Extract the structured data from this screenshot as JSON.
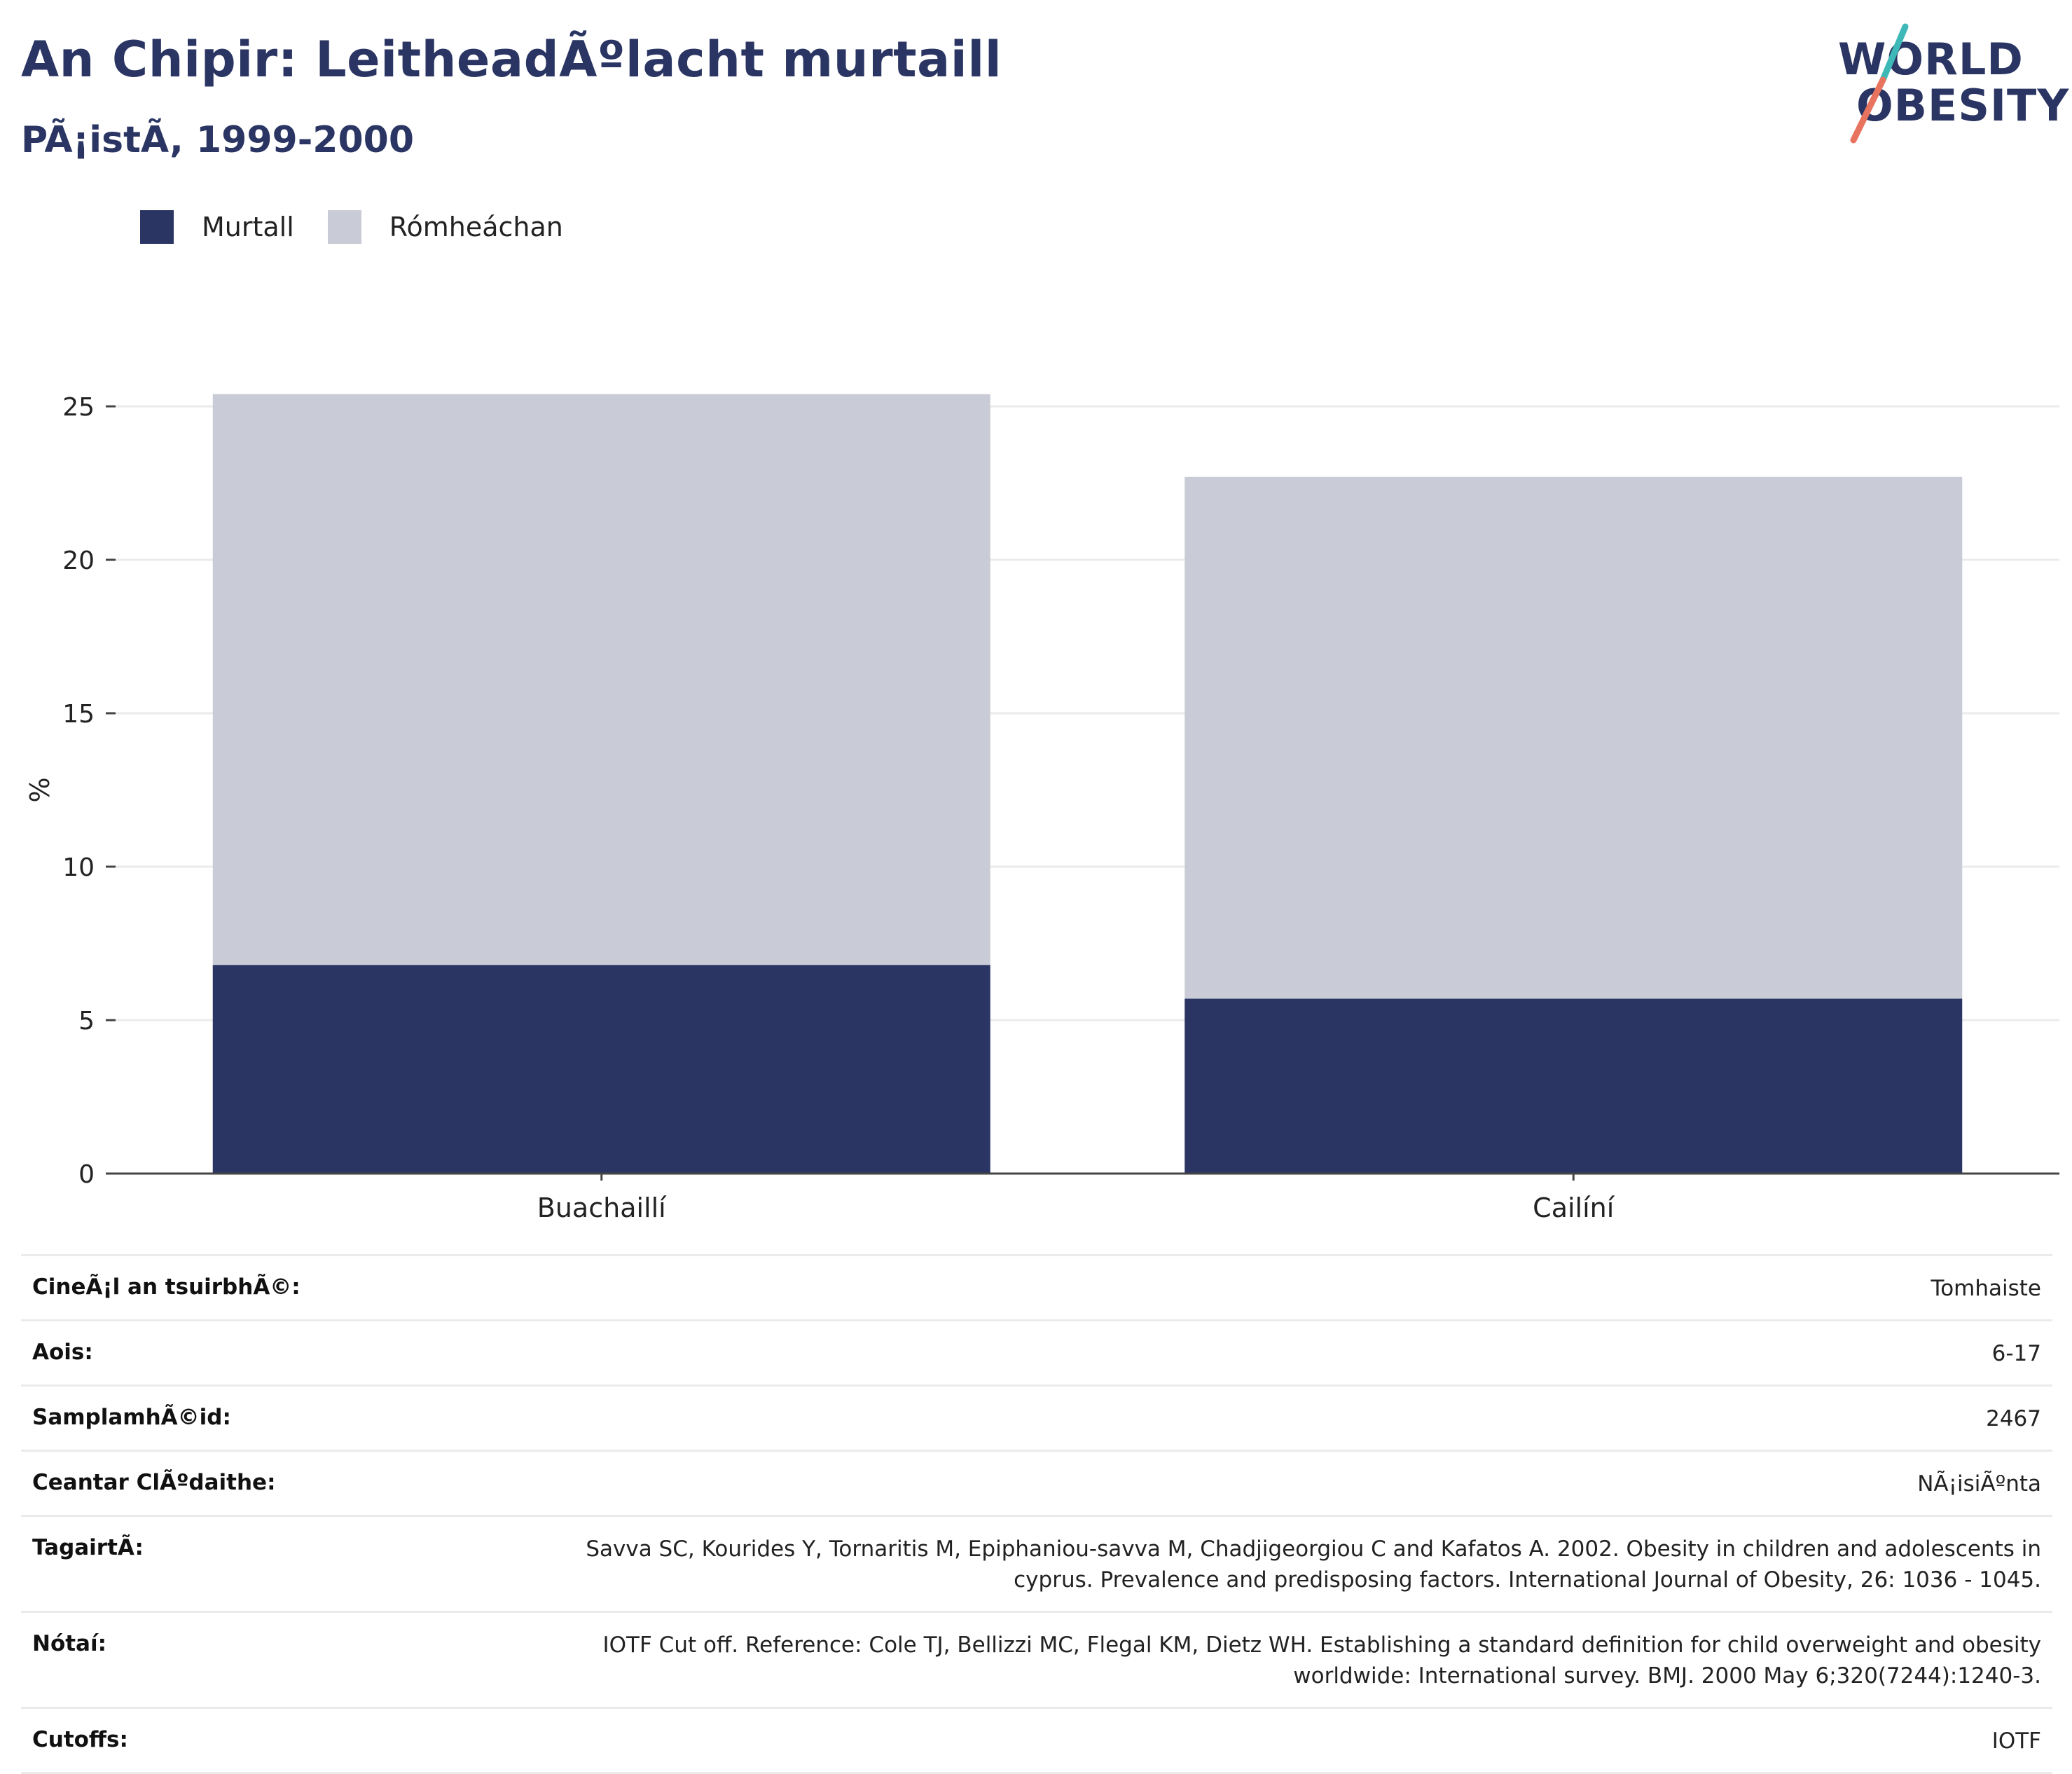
{
  "header": {
    "title": "An Chipir: LeitheadÃºlacht murtaill",
    "subtitle": "PÃ¡istÃ, 1999-2000"
  },
  "logo": {
    "line1": "WORLD",
    "line2": "OBESITY"
  },
  "colors": {
    "murtall": "#2a3563",
    "romheachan": "#c9cbd7",
    "title": "#2a3563",
    "logo_accent_teal": "#3fb8b8",
    "logo_accent_coral": "#e8735f"
  },
  "legend": {
    "items": [
      {
        "label": "Murtall",
        "color": "#2a3563"
      },
      {
        "label": "Rómheáchan",
        "color": "#c9cbd7"
      }
    ]
  },
  "chart_data": {
    "type": "bar",
    "stacked": true,
    "categories": [
      "Buachaillí",
      "Cailíní"
    ],
    "series": [
      {
        "name": "Murtall",
        "values": [
          6.8,
          5.7
        ],
        "color": "#2a3563"
      },
      {
        "name": "Rómheáchan",
        "values": [
          18.6,
          17.0
        ],
        "color": "#c9cbd7"
      }
    ],
    "totals": [
      25.4,
      22.7
    ],
    "ylabel": "%",
    "xlabel": "",
    "ylim": [
      0,
      25
    ],
    "yticks": [
      0,
      5,
      10,
      15,
      20,
      25
    ],
    "grid": true,
    "legend_position": "top-left"
  },
  "info": {
    "rows": [
      {
        "label": "CineÃ¡l an tsuirbhÃ©:",
        "value": "Tomhaiste"
      },
      {
        "label": "Aois:",
        "value": "6-17"
      },
      {
        "label": "SamplamhÃ©id:",
        "value": "2467"
      },
      {
        "label": "Ceantar ClÃºdaithe:",
        "value": "NÃ¡isiÃºnta"
      },
      {
        "label": "TagairtÃ:",
        "value": "Savva SC, Kourides Y, Tornaritis M, Epiphaniou-savva M, Chadjigeorgiou C and Kafatos A. 2002. Obesity in children and adolescents in cyprus. Prevalence and predisposing factors. International Journal of Obesity, 26: 1036 - 1045."
      },
      {
        "label": "Nótaí:",
        "value": "IOTF Cut off. Reference: Cole TJ, Bellizzi MC, Flegal KM, Dietz WH. Establishing a standard definition for child overweight and obesity worldwide: International survey. BMJ. 2000 May 6;320(7244):1240-3."
      },
      {
        "label": "Cutoffs:",
        "value": "IOTF"
      }
    ]
  }
}
